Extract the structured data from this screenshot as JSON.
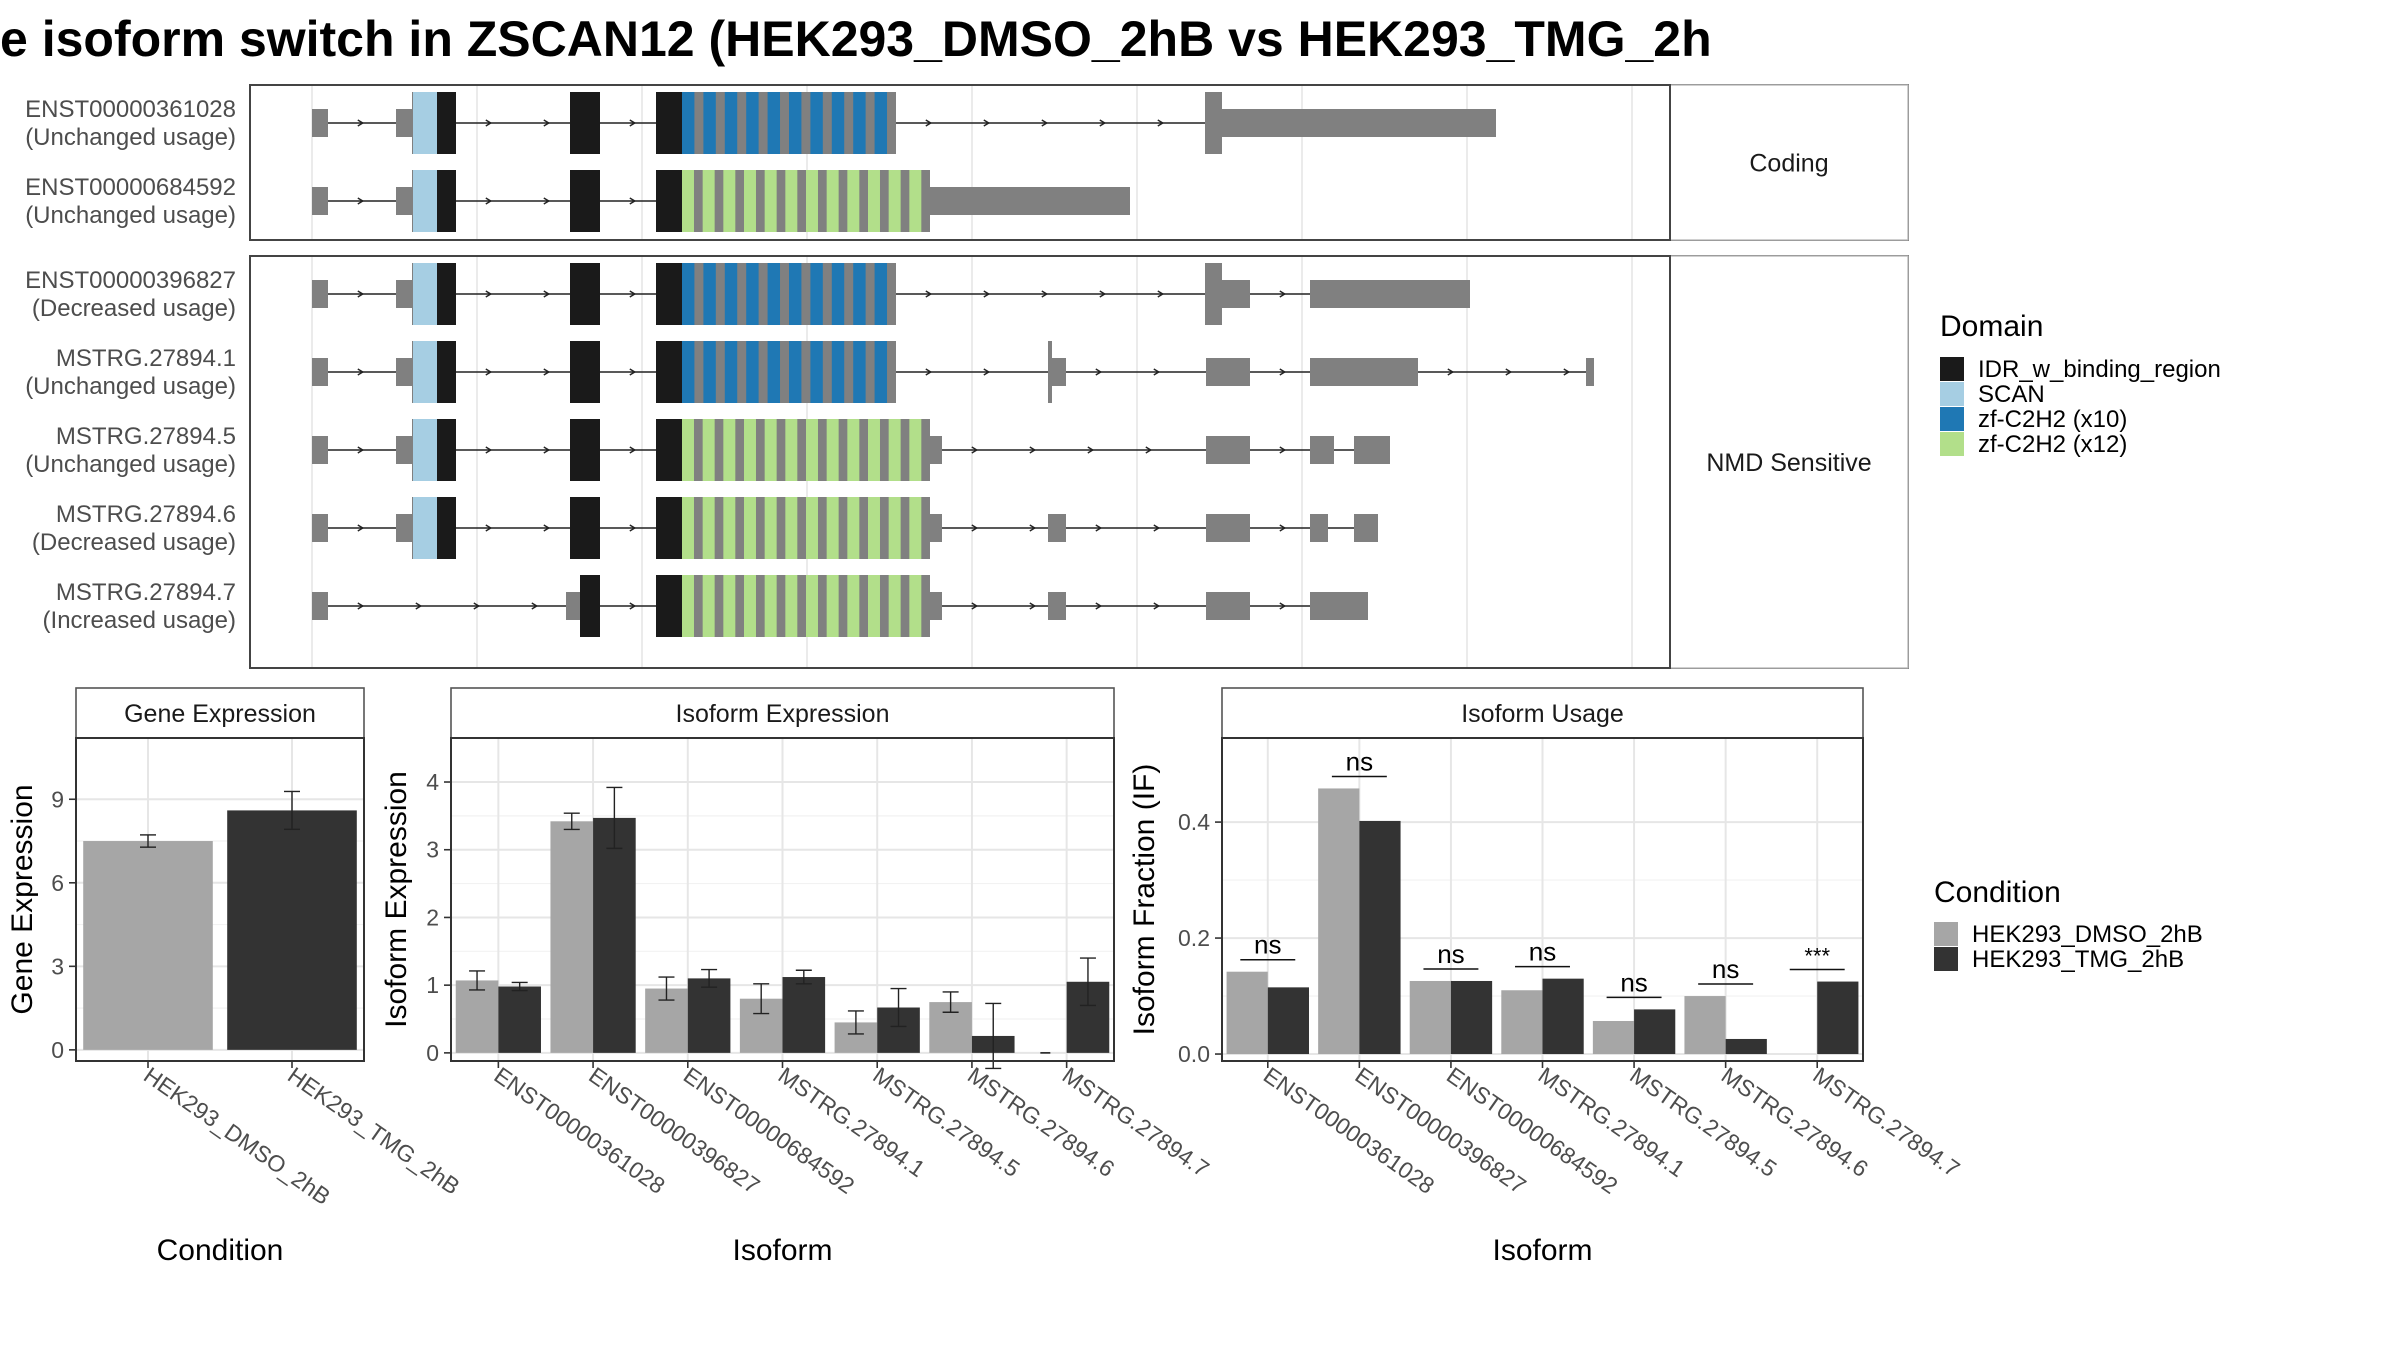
{
  "title": "e isoform switch in ZSCAN12 (HEK293_DMSO_2hB vs HEK293_TMG_2h",
  "colors": {
    "IDR_w_binding_region": "#1a1a1a",
    "SCAN": "#a6cee3",
    "zf-C2H2 (x10)": "#1f78b4",
    "zf-C2H2 (x12)": "#b2df8a",
    "exon": "#808080",
    "HEK293_DMSO_2hB": "#a6a6a6",
    "HEK293_TMG_2hB": "#333333"
  },
  "structure": {
    "groups": [
      {
        "label": "Coding",
        "isoforms": [
          {
            "id": "ENST00000361028",
            "usage": "(Unchanged usage)",
            "variant": "A"
          },
          {
            "id": "ENST00000684592",
            "usage": "(Unchanged usage)",
            "variant": "B"
          }
        ]
      },
      {
        "label": "NMD Sensitive",
        "isoforms": [
          {
            "id": "ENST00000396827",
            "usage": "(Decreased usage)",
            "variant": "C"
          },
          {
            "id": "MSTRG.27894.1",
            "usage": "(Unchanged usage)",
            "variant": "D"
          },
          {
            "id": "MSTRG.27894.5",
            "usage": "(Unchanged usage)",
            "variant": "E"
          },
          {
            "id": "MSTRG.27894.6",
            "usage": "(Decreased usage)",
            "variant": "F"
          },
          {
            "id": "MSTRG.27894.7",
            "usage": "(Increased usage)",
            "variant": "G"
          }
        ]
      }
    ]
  },
  "legend_domain": {
    "title": "Domain",
    "items": [
      "IDR_w_binding_region",
      "SCAN",
      "zf-C2H2 (x10)",
      "zf-C2H2 (x12)"
    ]
  },
  "legend_condition": {
    "title": "Condition",
    "items": [
      "HEK293_DMSO_2hB",
      "HEK293_TMG_2hB"
    ]
  },
  "chart_data": [
    {
      "type": "bar",
      "title": "Gene Expression",
      "xlabel": "Condition",
      "ylabel": "Gene Expression",
      "ylim": [
        -0.4,
        11.2
      ],
      "yticks": [
        0,
        3,
        6,
        9
      ],
      "categories": [
        "HEK293_DMSO_2hB",
        "HEK293_TMG_2hB"
      ],
      "values": [
        7.5,
        8.6
      ],
      "errors": [
        0.22,
        0.68
      ]
    },
    {
      "type": "bar",
      "title": "Isoform Expression",
      "xlabel": "Isoform",
      "ylabel": "Isoform Expression",
      "ylim": [
        -0.12,
        4.65
      ],
      "yticks": [
        0,
        1,
        2,
        3,
        4
      ],
      "categories": [
        "ENST00000361028",
        "ENST00000396827",
        "ENST00000684592",
        "MSTRG.27894.1",
        "MSTRG.27894.5",
        "MSTRG.27894.6",
        "MSTRG.27894.7"
      ],
      "series": [
        {
          "name": "HEK293_DMSO_2hB",
          "values": [
            1.07,
            3.42,
            0.95,
            0.8,
            0.45,
            0.75,
            0.0
          ],
          "errors": [
            0.14,
            0.12,
            0.17,
            0.22,
            0.17,
            0.15,
            0.0
          ]
        },
        {
          "name": "HEK293_TMG_2hB",
          "values": [
            0.98,
            3.47,
            1.1,
            1.12,
            0.67,
            0.25,
            1.05
          ],
          "errors": [
            0.06,
            0.45,
            0.13,
            0.1,
            0.28,
            0.48,
            0.35
          ]
        }
      ]
    },
    {
      "type": "bar",
      "title": "Isoform Usage",
      "xlabel": "Isoform",
      "ylabel": "Isoform Fraction (IF)",
      "ylim": [
        -0.012,
        0.545
      ],
      "yticks": [
        "0.0",
        "0.2",
        "0.4"
      ],
      "categories": [
        "ENST00000361028",
        "ENST00000396827",
        "ENST00000684592",
        "MSTRG.27894.1",
        "MSTRG.27894.5",
        "MSTRG.27894.6",
        "MSTRG.27894.7"
      ],
      "series": [
        {
          "name": "HEK293_DMSO_2hB",
          "values": [
            0.142,
            0.458,
            0.126,
            0.11,
            0.057,
            0.1,
            0.0
          ]
        },
        {
          "name": "HEK293_TMG_2hB",
          "values": [
            0.115,
            0.402,
            0.126,
            0.13,
            0.077,
            0.026,
            0.125
          ]
        }
      ],
      "significance": [
        "ns",
        "ns",
        "ns",
        "ns",
        "ns",
        "ns",
        "***"
      ]
    }
  ]
}
